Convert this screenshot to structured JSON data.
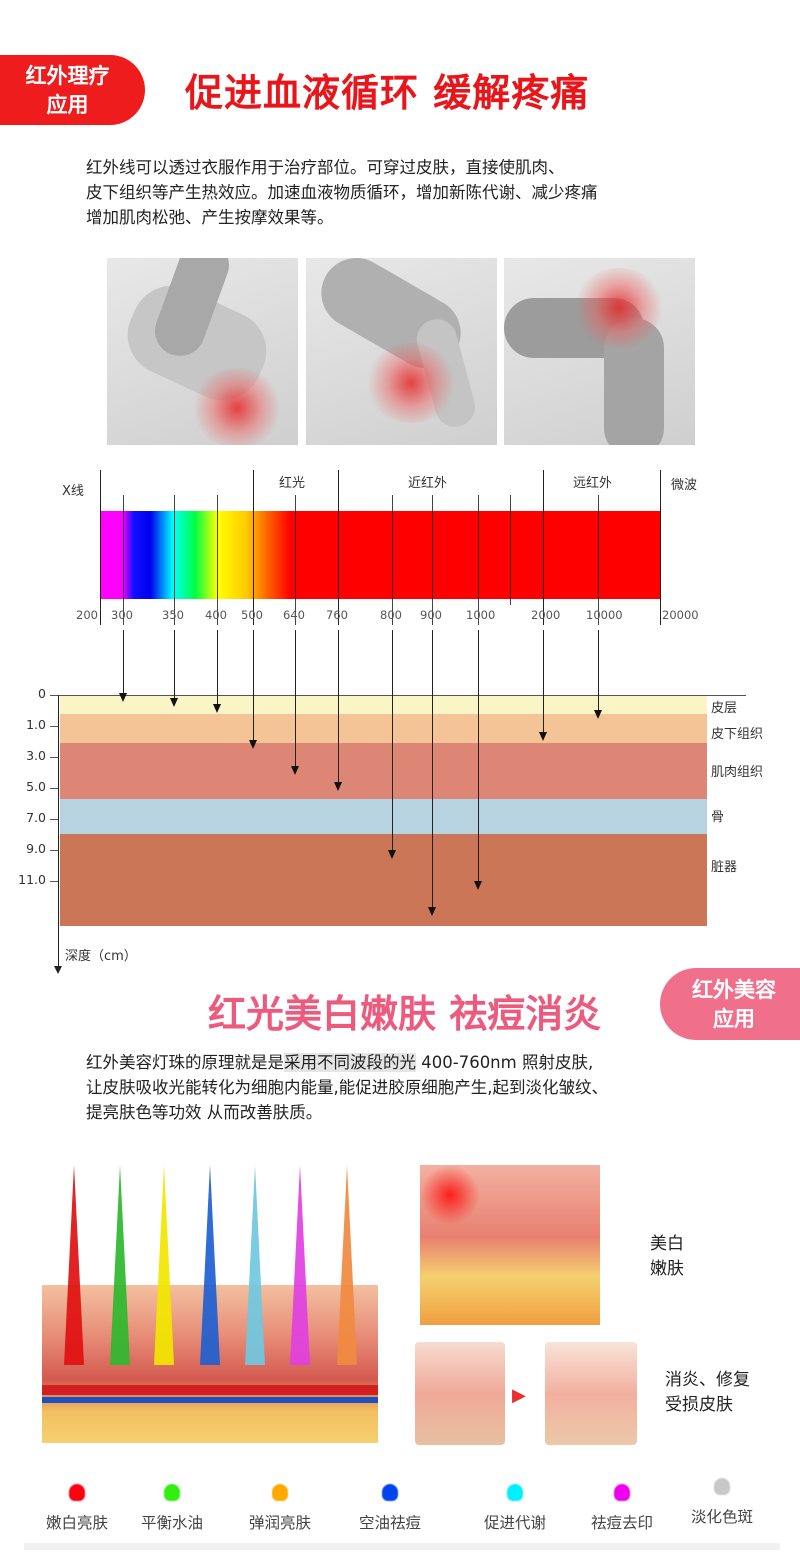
{
  "section1": {
    "badge": [
      "红外理疗",
      "应用"
    ],
    "title": "促进血液循环 缓解疼痛",
    "paragraph": [
      "红外线可以透过衣服作用于治疗部位。可穿过皮肤，直接使肌肉、",
      "皮下组织等产生热效应。加速血液物质循环，增加新陈代谢、减少疼痛",
      "增加肌肉松弛、产生按摩效果等。"
    ],
    "photos": [
      "knee-pain-photo",
      "knee-pain-photo",
      "knee-pain-photo"
    ]
  },
  "spectrum": {
    "bands": {
      "xray": "X线",
      "red": "红光",
      "near_ir": "近红外",
      "far_ir": "远红外",
      "microwave": "微波"
    },
    "ticks": [
      "200",
      "300",
      "350",
      "400",
      "500",
      "640",
      "760",
      "800",
      "900",
      "1000",
      "2000",
      "10000",
      "20000"
    ]
  },
  "depth_chart": {
    "y_ticks": [
      "0",
      "1.0",
      "3.0",
      "5.0",
      "7.0",
      "9.0",
      "11.0"
    ],
    "axis_label": "深度（cm）",
    "layers": [
      "皮层",
      "皮下组织",
      "肌肉组织",
      "骨",
      "脏器"
    ],
    "layer_colors": [
      "#fbf4c6",
      "#f4c496",
      "#de8675",
      "#b7d3e2",
      "#cc7658"
    ],
    "penetration": [
      {
        "wavelength": "300",
        "depth_cm": 0.2
      },
      {
        "wavelength": "350",
        "depth_cm": 0.35
      },
      {
        "wavelength": "400",
        "depth_cm": 0.55
      },
      {
        "wavelength": "500",
        "depth_cm": 2.4
      },
      {
        "wavelength": "640",
        "depth_cm": 4.1
      },
      {
        "wavelength": "760",
        "depth_cm": 5.1
      },
      {
        "wavelength": "800",
        "depth_cm": 9.5
      },
      {
        "wavelength": "900",
        "depth_cm": 13.2
      },
      {
        "wavelength": "1000",
        "depth_cm": 11.5
      },
      {
        "wavelength": "2000",
        "depth_cm": 1.9
      },
      {
        "wavelength": "10000",
        "depth_cm": 0.75
      }
    ]
  },
  "section2": {
    "badge": [
      "红外美容",
      "应用"
    ],
    "title": "红光美白嫩肤 祛痘消炎",
    "paragraph": {
      "line1_pre": "红外美容灯珠的原理就是是",
      "line1_highlight": "采用不同波段的光",
      "line1_post": " 400-760nm 照射皮肤,",
      "line2": "让皮肤吸收光能转化为细胞内能量,能促进胶原细胞产生,起到淡化皱纹、",
      "line3": "提亮肤色等功效 从而改善肤质。"
    },
    "beam_colors": [
      "#e01010",
      "#2eb82e",
      "#f2e600",
      "#2060d0",
      "#70c8e0",
      "#e040e0",
      "#f08a40"
    ],
    "label_whitening": [
      "美白",
      "嫩肤"
    ],
    "label_repair": [
      "消炎、修复",
      "受损皮肤"
    ]
  },
  "legend": [
    {
      "label": "嫩白亮肤",
      "color": "#ff0010"
    },
    {
      "label": "平衡水油",
      "color": "#33ee11"
    },
    {
      "label": "弹润亮肤",
      "color": "#ffaa00"
    },
    {
      "label": "空油祛痘",
      "color": "#0044ee"
    },
    {
      "label": "促进代谢",
      "color": "#00f0ff"
    },
    {
      "label": "祛痘去印",
      "color": "#ee00ee"
    },
    {
      "label": "淡化色斑",
      "color": "#c8c8c8"
    }
  ]
}
